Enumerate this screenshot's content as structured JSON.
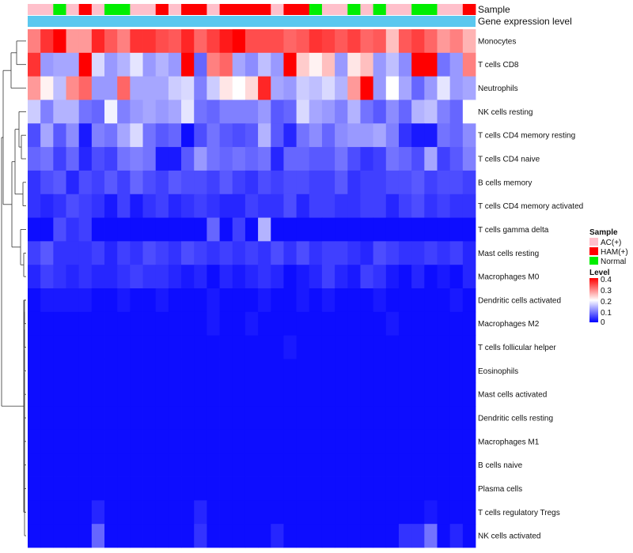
{
  "chart_data": {
    "type": "heatmap",
    "title": "",
    "row_labels": [
      "Monocytes",
      "T cells CD8",
      "Neutrophils",
      "NK cells resting",
      "T cells CD4 memory resting",
      "T cells CD4 naive",
      "B cells memory",
      "T cells CD4 memory activated",
      "T cells gamma delta",
      "Mast cells resting",
      "Macrophages M0",
      "Dendritic cells activated",
      "Macrophages M2",
      "T cells follicular helper",
      "Eosinophils",
      "Mast cells activated",
      "Dendritic cells resting",
      "Macrophages M1",
      "B cells naive",
      "Plasma cells",
      "T cells regulatory  Tregs",
      "NK cells activated"
    ],
    "sample_groups": [
      "AC(+)",
      "AC(+)",
      "Normal",
      "AC(+)",
      "HAM(+)",
      "AC(+)",
      "Normal",
      "Normal",
      "AC(+)",
      "AC(+)",
      "HAM(+)",
      "AC(+)",
      "HAM(+)",
      "HAM(+)",
      "AC(+)",
      "HAM(+)",
      "HAM(+)",
      "HAM(+)",
      "HAM(+)",
      "AC(+)",
      "HAM(+)",
      "HAM(+)",
      "Normal",
      "AC(+)",
      "AC(+)",
      "Normal",
      "AC(+)",
      "Normal",
      "AC(+)",
      "AC(+)",
      "Normal",
      "Normal",
      "AC(+)",
      "AC(+)",
      "HAM(+)"
    ],
    "annotation_labels": {
      "sample": "Sample",
      "expression": "Gene expression level"
    },
    "values": [
      [
        0.3,
        0.36,
        0.4,
        0.28,
        0.28,
        0.37,
        0.33,
        0.3,
        0.36,
        0.36,
        0.34,
        0.33,
        0.37,
        0.32,
        0.35,
        0.38,
        0.4,
        0.34,
        0.34,
        0.34,
        0.32,
        0.33,
        0.36,
        0.35,
        0.33,
        0.35,
        0.32,
        0.33,
        0.25,
        0.33,
        0.35,
        0.32,
        0.28,
        0.3,
        0.26
      ],
      [
        0.36,
        0.12,
        0.13,
        0.13,
        0.4,
        0.17,
        0.12,
        0.14,
        0.18,
        0.12,
        0.14,
        0.12,
        0.4,
        0.08,
        0.3,
        0.32,
        0.13,
        0.11,
        0.15,
        0.12,
        0.4,
        0.24,
        0.21,
        0.25,
        0.12,
        0.22,
        0.25,
        0.12,
        0.15,
        0.11,
        0.4,
        0.4,
        0.09,
        0.12,
        0.3
      ],
      [
        0.28,
        0.21,
        0.15,
        0.29,
        0.32,
        0.12,
        0.12,
        0.32,
        0.13,
        0.13,
        0.13,
        0.16,
        0.17,
        0.1,
        0.16,
        0.22,
        0.2,
        0.23,
        0.37,
        0.13,
        0.12,
        0.16,
        0.15,
        0.17,
        0.14,
        0.28,
        0.4,
        0.12,
        0.2,
        0.13,
        0.08,
        0.12,
        0.18,
        0.12,
        0.13
      ],
      [
        0.16,
        0.1,
        0.14,
        0.14,
        0.09,
        0.08,
        0.19,
        0.1,
        0.12,
        0.13,
        0.12,
        0.13,
        0.18,
        0.09,
        0.08,
        0.1,
        0.1,
        0.1,
        0.12,
        0.07,
        0.08,
        0.17,
        0.13,
        0.12,
        0.1,
        0.14,
        0.09,
        0.07,
        0.11,
        0.08,
        0.14,
        0.15,
        0.1,
        0.08,
        0.2
      ],
      [
        0.06,
        0.13,
        0.07,
        0.11,
        0.02,
        0.1,
        0.09,
        0.13,
        0.17,
        0.09,
        0.07,
        0.08,
        0.01,
        0.06,
        0.09,
        0.07,
        0.06,
        0.07,
        0.14,
        0.07,
        0.03,
        0.09,
        0.11,
        0.08,
        0.11,
        0.12,
        0.12,
        0.13,
        0.1,
        0.04,
        0.02,
        0.02,
        0.09,
        0.08,
        0.11
      ],
      [
        0.08,
        0.09,
        0.05,
        0.08,
        0.03,
        0.06,
        0.05,
        0.09,
        0.1,
        0.09,
        0.02,
        0.02,
        0.07,
        0.12,
        0.09,
        0.08,
        0.09,
        0.08,
        0.09,
        0.03,
        0.08,
        0.08,
        0.07,
        0.07,
        0.09,
        0.06,
        0.04,
        0.05,
        0.09,
        0.08,
        0.06,
        0.13,
        0.05,
        0.07,
        0.1
      ],
      [
        0.04,
        0.06,
        0.07,
        0.03,
        0.06,
        0.05,
        0.07,
        0.05,
        0.08,
        0.06,
        0.05,
        0.07,
        0.06,
        0.06,
        0.05,
        0.07,
        0.05,
        0.04,
        0.06,
        0.05,
        0.06,
        0.06,
        0.05,
        0.05,
        0.07,
        0.04,
        0.05,
        0.05,
        0.06,
        0.06,
        0.07,
        0.05,
        0.06,
        0.06,
        0.05
      ],
      [
        0.04,
        0.03,
        0.04,
        0.06,
        0.05,
        0.04,
        0.02,
        0.05,
        0.02,
        0.04,
        0.05,
        0.03,
        0.04,
        0.05,
        0.04,
        0.03,
        0.03,
        0.05,
        0.04,
        0.04,
        0.06,
        0.03,
        0.05,
        0.05,
        0.04,
        0.04,
        0.05,
        0.05,
        0.03,
        0.05,
        0.06,
        0.04,
        0.05,
        0.04,
        0.04
      ],
      [
        0.01,
        0.01,
        0.06,
        0.04,
        0.05,
        0.01,
        0.01,
        0.01,
        0.01,
        0.01,
        0.01,
        0.01,
        0.01,
        0.01,
        0.08,
        0.01,
        0.05,
        0.01,
        0.14,
        0.01,
        0.01,
        0.01,
        0.01,
        0.01,
        0.01,
        0.01,
        0.01,
        0.01,
        0.01,
        0.01,
        0.01,
        0.01,
        0.01,
        0.01,
        0.01
      ],
      [
        0.05,
        0.07,
        0.04,
        0.04,
        0.04,
        0.05,
        0.03,
        0.05,
        0.04,
        0.06,
        0.05,
        0.04,
        0.06,
        0.05,
        0.04,
        0.05,
        0.04,
        0.05,
        0.04,
        0.06,
        0.04,
        0.06,
        0.04,
        0.05,
        0.05,
        0.04,
        0.03,
        0.06,
        0.05,
        0.04,
        0.04,
        0.05,
        0.04,
        0.05,
        0.03
      ],
      [
        0.03,
        0.05,
        0.04,
        0.03,
        0.04,
        0.03,
        0.03,
        0.04,
        0.05,
        0.04,
        0.04,
        0.03,
        0.02,
        0.03,
        0.01,
        0.03,
        0.02,
        0.03,
        0.04,
        0.03,
        0.01,
        0.02,
        0.03,
        0.05,
        0.03,
        0.02,
        0.05,
        0.04,
        0.02,
        0.01,
        0.03,
        0.01,
        0.02,
        0.01,
        0.03
      ],
      [
        0.01,
        0.02,
        0.02,
        0.02,
        0.02,
        0.01,
        0.01,
        0.02,
        0.01,
        0.01,
        0.02,
        0.01,
        0.01,
        0.01,
        0.02,
        0.01,
        0.01,
        0.01,
        0.02,
        0.01,
        0.01,
        0.02,
        0.01,
        0.02,
        0.01,
        0.01,
        0.01,
        0.02,
        0.01,
        0.01,
        0.01,
        0.01,
        0.01,
        0.02,
        0.01
      ],
      [
        0.01,
        0.01,
        0.01,
        0.01,
        0.01,
        0.01,
        0.01,
        0.01,
        0.01,
        0.01,
        0.01,
        0.01,
        0.01,
        0.01,
        0.02,
        0.01,
        0.01,
        0.02,
        0.01,
        0.01,
        0.01,
        0.01,
        0.01,
        0.01,
        0.01,
        0.01,
        0.01,
        0.01,
        0.02,
        0.01,
        0.01,
        0.01,
        0.01,
        0.01,
        0.01
      ],
      [
        0.01,
        0.01,
        0.01,
        0.01,
        0.01,
        0.01,
        0.01,
        0.01,
        0.01,
        0.01,
        0.01,
        0.01,
        0.01,
        0.01,
        0.01,
        0.01,
        0.01,
        0.01,
        0.01,
        0.01,
        0.02,
        0.01,
        0.01,
        0.01,
        0.01,
        0.01,
        0.01,
        0.01,
        0.01,
        0.01,
        0.01,
        0.01,
        0.01,
        0.01,
        0.01
      ],
      [
        0.01,
        0.01,
        0.01,
        0.01,
        0.01,
        0.01,
        0.01,
        0.01,
        0.01,
        0.01,
        0.01,
        0.01,
        0.01,
        0.01,
        0.01,
        0.01,
        0.01,
        0.01,
        0.01,
        0.01,
        0.01,
        0.01,
        0.01,
        0.01,
        0.01,
        0.01,
        0.01,
        0.01,
        0.01,
        0.01,
        0.01,
        0.01,
        0.01,
        0.01,
        0.01
      ],
      [
        0.01,
        0.01,
        0.01,
        0.01,
        0.01,
        0.01,
        0.01,
        0.01,
        0.01,
        0.01,
        0.01,
        0.01,
        0.01,
        0.01,
        0.01,
        0.01,
        0.01,
        0.01,
        0.01,
        0.01,
        0.01,
        0.01,
        0.01,
        0.01,
        0.01,
        0.01,
        0.01,
        0.01,
        0.01,
        0.01,
        0.01,
        0.01,
        0.01,
        0.01,
        0.01
      ],
      [
        0.01,
        0.01,
        0.01,
        0.01,
        0.01,
        0.01,
        0.01,
        0.01,
        0.01,
        0.01,
        0.01,
        0.01,
        0.01,
        0.01,
        0.01,
        0.01,
        0.01,
        0.01,
        0.01,
        0.01,
        0.01,
        0.01,
        0.01,
        0.01,
        0.01,
        0.01,
        0.01,
        0.01,
        0.01,
        0.01,
        0.01,
        0.01,
        0.01,
        0.01,
        0.01
      ],
      [
        0.01,
        0.01,
        0.01,
        0.01,
        0.01,
        0.01,
        0.01,
        0.01,
        0.01,
        0.01,
        0.01,
        0.01,
        0.01,
        0.01,
        0.01,
        0.01,
        0.01,
        0.01,
        0.01,
        0.01,
        0.01,
        0.01,
        0.01,
        0.01,
        0.01,
        0.01,
        0.01,
        0.01,
        0.01,
        0.01,
        0.01,
        0.01,
        0.01,
        0.01,
        0.01
      ],
      [
        0.01,
        0.01,
        0.01,
        0.01,
        0.01,
        0.01,
        0.01,
        0.01,
        0.01,
        0.01,
        0.01,
        0.01,
        0.01,
        0.01,
        0.01,
        0.01,
        0.01,
        0.01,
        0.01,
        0.01,
        0.01,
        0.01,
        0.01,
        0.01,
        0.01,
        0.01,
        0.01,
        0.01,
        0.01,
        0.01,
        0.01,
        0.01,
        0.01,
        0.01,
        0.01
      ],
      [
        0.01,
        0.01,
        0.01,
        0.01,
        0.01,
        0.01,
        0.01,
        0.01,
        0.01,
        0.01,
        0.01,
        0.01,
        0.01,
        0.01,
        0.01,
        0.01,
        0.01,
        0.01,
        0.01,
        0.01,
        0.01,
        0.01,
        0.01,
        0.01,
        0.01,
        0.01,
        0.01,
        0.01,
        0.01,
        0.01,
        0.01,
        0.01,
        0.01,
        0.01,
        0.01
      ],
      [
        0.01,
        0.01,
        0.01,
        0.01,
        0.01,
        0.03,
        0.01,
        0.01,
        0.01,
        0.01,
        0.01,
        0.01,
        0.01,
        0.03,
        0.01,
        0.01,
        0.01,
        0.01,
        0.01,
        0.01,
        0.01,
        0.01,
        0.01,
        0.01,
        0.01,
        0.01,
        0.01,
        0.01,
        0.01,
        0.01,
        0.01,
        0.02,
        0.01,
        0.01,
        0.01
      ],
      [
        0.01,
        0.01,
        0.01,
        0.01,
        0.01,
        0.08,
        0.01,
        0.01,
        0.01,
        0.01,
        0.01,
        0.01,
        0.01,
        0.04,
        0.01,
        0.01,
        0.01,
        0.01,
        0.01,
        0.03,
        0.01,
        0.01,
        0.01,
        0.01,
        0.01,
        0.01,
        0.01,
        0.01,
        0.01,
        0.04,
        0.04,
        0.09,
        0.01,
        0.03,
        0.01
      ]
    ],
    "legend": {
      "sample": {
        "title": "Sample",
        "entries": [
          "AC(+)",
          "HAM(+)",
          "Normal"
        ]
      },
      "level": {
        "title": "Level",
        "ticks": [
          "0.4",
          "0.3",
          "0.2",
          "0.1",
          "0"
        ],
        "range": [
          0,
          0.4
        ]
      }
    }
  },
  "colors": {
    "AC(+)": "#FFC0CB",
    "HAM(+)": "#FF0000",
    "Normal": "#00EE00",
    "expression_bar": "#5BC8EF",
    "low": "#0000FF",
    "mid": "#FFFFFF",
    "high": "#FF0000"
  }
}
